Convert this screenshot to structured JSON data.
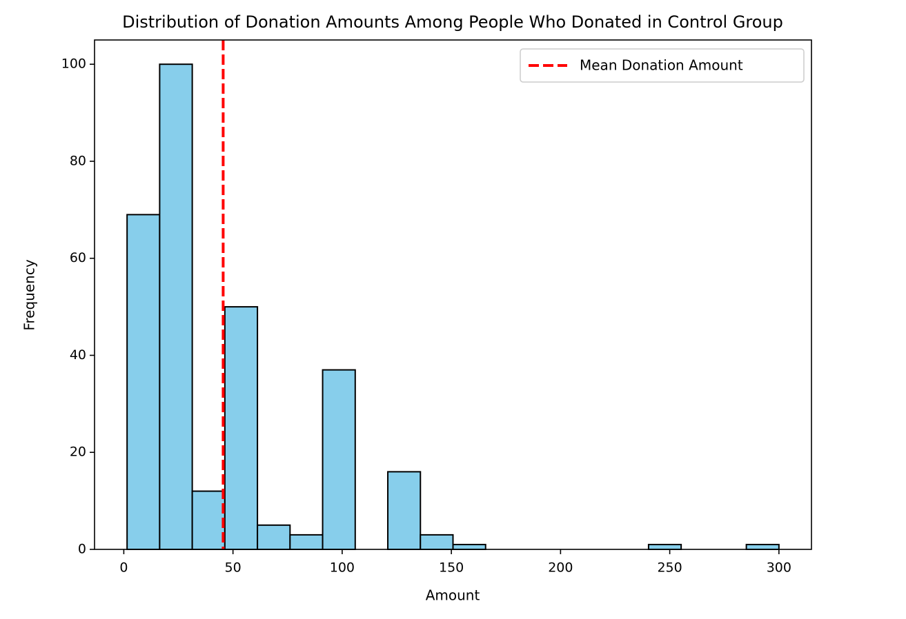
{
  "chart_data": {
    "type": "histogram",
    "title": "Distribution of Donation Amounts Among People Who Donated in Control Group",
    "x_label": "Amount",
    "y_label": "Frequency",
    "bins": [
      1.5,
      16.425,
      31.35,
      46.275,
      61.2,
      76.125,
      91.05,
      105.975,
      120.9,
      135.825,
      150.75,
      165.675,
      180.6,
      195.525,
      210.45,
      225.375,
      240.3,
      255.225,
      270.15,
      285.075,
      300
    ],
    "counts": [
      69,
      100,
      12,
      50,
      5,
      3,
      37,
      0,
      16,
      3,
      1,
      0,
      0,
      0,
      0,
      0,
      1,
      0,
      0,
      1
    ],
    "color": "#87ceeb",
    "edge_color": "#000000",
    "mean_line": {
      "label": "Mean Donation Amount",
      "value": 45.5,
      "color": "#ff0000"
    },
    "xlim": [
      -13.4,
      314.9
    ],
    "xticks": [
      0,
      50,
      100,
      150,
      200,
      250,
      300
    ],
    "ylim": [
      0,
      105
    ],
    "yticks": [
      0,
      20,
      40,
      60,
      80,
      100
    ],
    "legend": "upper right"
  }
}
